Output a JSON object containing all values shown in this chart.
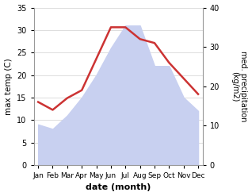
{
  "months": [
    "Jan",
    "Feb",
    "Mar",
    "Apr",
    "May",
    "Jun",
    "Jul",
    "Aug",
    "Sep",
    "Oct",
    "Nov",
    "Dec"
  ],
  "max_temp": [
    9,
    8,
    11,
    15,
    20,
    26,
    31,
    31,
    22,
    22,
    15,
    12
  ],
  "precipitation": [
    16,
    14,
    17,
    19,
    27,
    35,
    35,
    32,
    31,
    26,
    22,
    18
  ],
  "temp_fill_color": "#c8d0f0",
  "precip_color": "#cc3333",
  "temp_ylim": [
    0,
    35
  ],
  "precip_ylim": [
    0,
    40
  ],
  "xlabel": "date (month)",
  "ylabel_left": "max temp (C)",
  "ylabel_right": "med. precipitation\n(kg/m2)",
  "temp_yticks": [
    0,
    5,
    10,
    15,
    20,
    25,
    30,
    35
  ],
  "precip_yticks": [
    0,
    10,
    20,
    30,
    40
  ],
  "background_color": "#ffffff",
  "grid_color": "#d0d0d0"
}
